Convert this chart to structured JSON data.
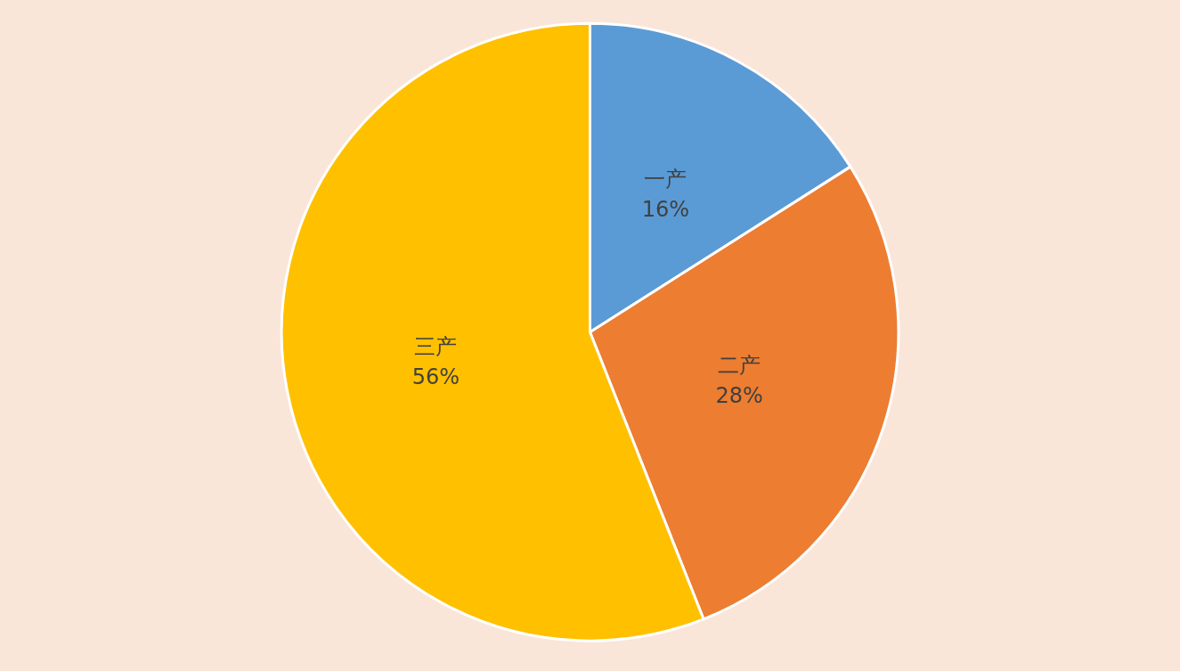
{
  "chart_data": {
    "type": "pie",
    "categories": [
      "一产",
      "二产",
      "三产"
    ],
    "values": [
      16,
      28,
      56
    ],
    "colors": [
      "#5b9bd5",
      "#ed7d31",
      "#ffc000"
    ],
    "value_labels": [
      "16%",
      "28%",
      "56%"
    ],
    "legend": false
  }
}
